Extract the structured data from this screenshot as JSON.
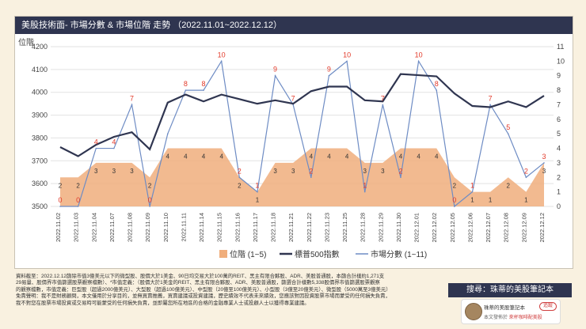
{
  "header": {
    "title": "美股技術面- 市場分數 & 市場位階 走勢 （2022.11.01~2022.12.12）"
  },
  "colors": {
    "bar": "#f0ae7c",
    "index_line": "#2f3550",
    "score_line": "#6e8cc4",
    "score_label": "#e23a2a",
    "bar_label": "#333333"
  },
  "chart_data": {
    "type": "bar+line",
    "title": "美股技術面- 市場分數 & 市場位階 走勢 （2022.11.01~2022.12.12）",
    "x": [
      "2022.11.02",
      "2022.11.03",
      "2022.11.04",
      "2022.11.07",
      "2022.11.08",
      "2022.11.09",
      "2022.11.10",
      "2022.11.11",
      "2022.11.14",
      "2022.11.15",
      "2022.11.16",
      "2022.11.17",
      "2022.11.18",
      "2022.11.21",
      "2022.11.22",
      "2022.11.23",
      "2022.11.25",
      "2022.11.28",
      "2022.11.29",
      "2022.11.30",
      "2022.12.01",
      "2022.12.02",
      "2022.12.05",
      "2022.12.06",
      "2022.12.07",
      "2022.12.08",
      "2022.12.09",
      "2022.12.12"
    ],
    "left_axis": {
      "label": "位階",
      "ticks": [
        3500,
        3600,
        3700,
        3800,
        3900,
        4000,
        4100,
        4200
      ],
      "range": [
        3500,
        4200
      ]
    },
    "right_axis": {
      "ticks": [
        0,
        1,
        2,
        3,
        4,
        5,
        6,
        7,
        8,
        9,
        10,
        11
      ],
      "range": [
        0,
        11
      ]
    },
    "series": [
      {
        "name": "位階 (1~5)",
        "type": "area",
        "values": [
          2,
          2,
          3,
          3,
          3,
          2,
          4,
          4,
          4,
          4,
          2,
          1,
          3,
          3,
          4,
          4,
          4,
          3,
          3,
          4,
          4,
          4,
          2,
          1,
          1,
          2,
          1,
          3
        ],
        "labels": [
          "2",
          "2",
          "3",
          "3",
          "3",
          "2",
          "4",
          "4",
          "4",
          "4",
          "2",
          "1",
          "3",
          "3",
          "4",
          "4",
          "4",
          "3",
          "3",
          "4",
          "4",
          "4",
          "2",
          "1",
          "1",
          "2",
          "1",
          "3"
        ]
      },
      {
        "name": "標普500指數",
        "type": "line",
        "values": [
          3760,
          3720,
          3770,
          3805,
          3825,
          3750,
          3955,
          3990,
          3960,
          3990,
          3970,
          3950,
          3965,
          3950,
          4005,
          4025,
          4025,
          3965,
          3960,
          4080,
          4075,
          4070,
          3995,
          3940,
          3935,
          3960,
          3935,
          3985
        ]
      },
      {
        "name": "市場分數 (1~11)",
        "type": "line",
        "values": [
          0,
          0,
          4,
          4,
          7,
          0,
          5,
          8,
          8,
          10,
          2,
          1,
          9,
          7,
          2,
          9,
          10,
          1,
          7,
          2,
          10,
          8,
          0,
          1,
          7,
          5,
          2,
          3
        ],
        "labels": [
          "0",
          "0",
          "4",
          "4",
          "7",
          "0",
          "",
          "8",
          "8",
          "10",
          "2",
          "1",
          "9",
          "7",
          "2",
          "9",
          "10",
          "1",
          "7",
          "2",
          "10",
          "8",
          "0",
          "1",
          "7",
          "5",
          "2",
          "3"
        ]
      }
    ]
  },
  "notes": {
    "line1": "資料截至：2022.12.12篩除市值3億美元以下的微型股、股價大於1美金、90日均交易大於100萬的REIT、黑主有限合夥股、ADR、美股普通股，本篩合計樣約1,271支",
    "line2": "29易量、股價界市值篩選股票觀察檔數）、*市值定義：（股價大於1美金的REIT、黑主有限合夥股、ADR、美股普通股，篩選合計樣數5,338股價界市值篩選股票觀察",
    "line3": "的觀察檔數，市值定義：巨型股（超過2000億美元）、大型股（超過100億美元）、中型股（20億至100億美元）、小型股（3億至20億美元）、微型股（5000萬至3億美元）",
    "line4": "免責聲明：我不是財務顧問，本文僅用於分享目的，並無買賣推薦，買賣建議或投資建議，歷史績效不代表未來績效，您應該對因投資股票市場而蒙受的任何損失負責，",
    "line5": "我不對您在股票市場投資或交易時可能蒙受的任何損失負責，並即屬您所在地區的合格的金融專業人士或投顧人士以獲得專業建議。"
  },
  "search": {
    "label": "搜尋：珠蒂的美股筆記本"
  },
  "card": {
    "name": "珠蒂的美股筆記本",
    "button": "追蹤",
    "sub_prefix": "本文發佈於",
    "sub_link": "來杯咖啡配美股"
  }
}
